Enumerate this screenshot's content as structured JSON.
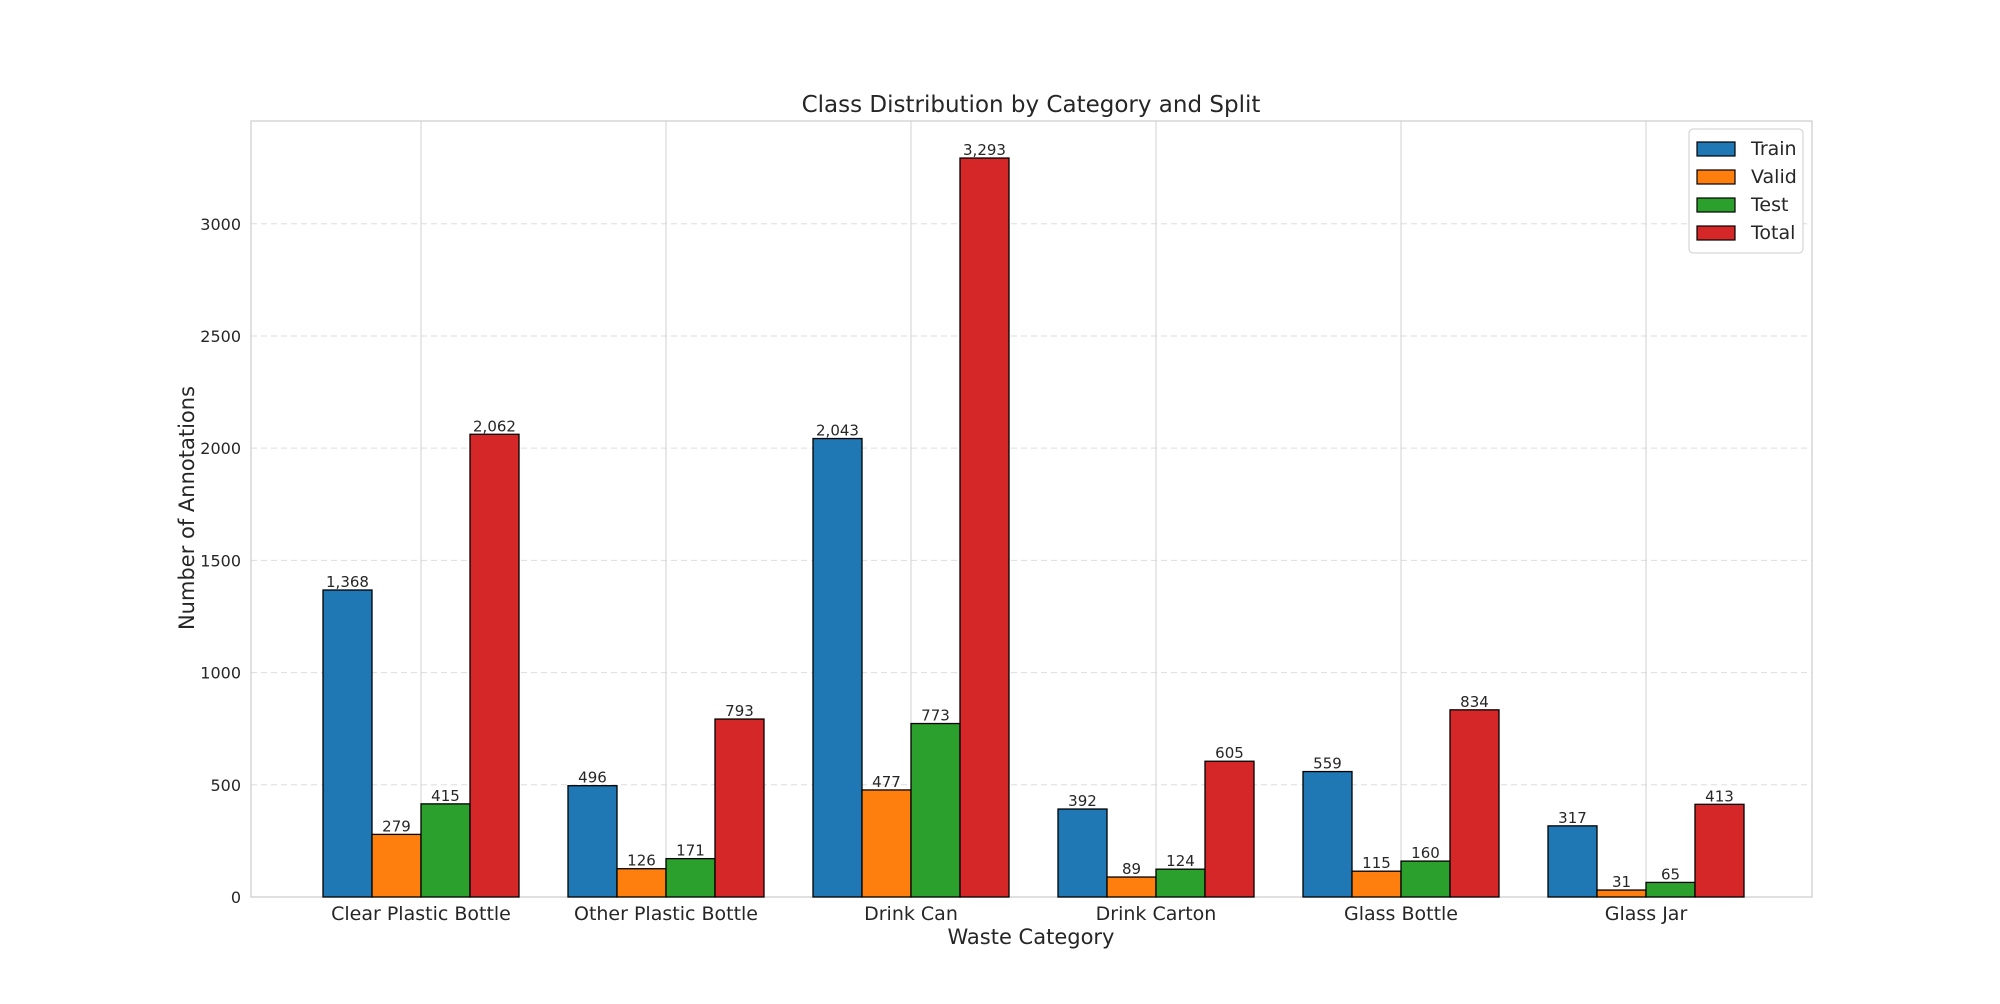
{
  "chart_data": {
    "type": "bar",
    "title": "Class Distribution by Category and Split",
    "xlabel": "Waste Category",
    "ylabel": "Number of Annotations",
    "categories": [
      "Clear Plastic Bottle",
      "Other Plastic Bottle",
      "Drink Can",
      "Drink Carton",
      "Glass Bottle",
      "Glass Jar"
    ],
    "series": [
      {
        "name": "Train",
        "color": "#1f77b4",
        "values": [
          1368,
          496,
          2043,
          392,
          559,
          317
        ],
        "labels": [
          "1,368",
          "496",
          "2,043",
          "392",
          "559",
          "317"
        ]
      },
      {
        "name": "Valid",
        "color": "#ff7f0e",
        "values": [
          279,
          126,
          477,
          89,
          115,
          31
        ],
        "labels": [
          "279",
          "126",
          "477",
          "89",
          "115",
          "31"
        ]
      },
      {
        "name": "Test",
        "color": "#2ca02c",
        "values": [
          415,
          171,
          773,
          124,
          160,
          65
        ],
        "labels": [
          "415",
          "171",
          "773",
          "124",
          "160",
          "65"
        ]
      },
      {
        "name": "Total",
        "color": "#d62728",
        "values": [
          2062,
          793,
          3293,
          605,
          834,
          413
        ],
        "labels": [
          "2,062",
          "793",
          "3,293",
          "605",
          "834",
          "413"
        ]
      }
    ],
    "ylim": [
      0,
      3458
    ],
    "yticks": [
      0,
      500,
      1000,
      1500,
      2000,
      2500,
      3000
    ],
    "grid": {
      "y": true,
      "y_style": "dashed",
      "x": true
    },
    "legend_position": "top-right"
  }
}
